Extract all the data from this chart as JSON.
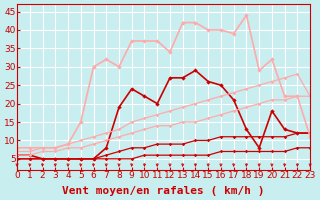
{
  "xlabel": "Vent moyen/en rafales ( km/h )",
  "xlim": [
    0,
    23
  ],
  "ylim": [
    2,
    47
  ],
  "yticks": [
    5,
    10,
    15,
    20,
    25,
    30,
    35,
    40,
    45
  ],
  "xticks": [
    0,
    1,
    2,
    3,
    4,
    5,
    6,
    7,
    8,
    9,
    10,
    11,
    12,
    13,
    14,
    15,
    16,
    17,
    18,
    19,
    20,
    21,
    22,
    23
  ],
  "bg_color": "#c8eef0",
  "grid_color": "#ffffff",
  "lines": [
    {
      "x": [
        0,
        1,
        2,
        3,
        4,
        5,
        6,
        7,
        8,
        9,
        10,
        11,
        12,
        13,
        14,
        15,
        16,
        17,
        18,
        19,
        20,
        21,
        22,
        23
      ],
      "y": [
        5,
        5,
        5,
        5,
        5,
        5,
        5,
        5,
        5,
        5,
        6,
        6,
        6,
        6,
        6,
        6,
        7,
        7,
        7,
        7,
        7,
        7,
        8,
        8
      ],
      "color": "#cc0000",
      "lw": 0.9,
      "marker": "D",
      "ms": 1.8,
      "alpha": 1.0
    },
    {
      "x": [
        0,
        1,
        2,
        3,
        4,
        5,
        6,
        7,
        8,
        9,
        10,
        11,
        12,
        13,
        14,
        15,
        16,
        17,
        18,
        19,
        20,
        21,
        22,
        23
      ],
      "y": [
        5,
        5,
        5,
        5,
        5,
        5,
        5,
        6,
        7,
        8,
        8,
        9,
        9,
        9,
        10,
        10,
        11,
        11,
        11,
        11,
        11,
        11,
        12,
        12
      ],
      "color": "#cc0000",
      "lw": 0.9,
      "marker": "D",
      "ms": 1.8,
      "alpha": 1.0
    },
    {
      "x": [
        0,
        1,
        2,
        3,
        4,
        5,
        6,
        7,
        8,
        9,
        10,
        11,
        12,
        13,
        14,
        15,
        16,
        17,
        18,
        19,
        20,
        21,
        22,
        23
      ],
      "y": [
        6,
        6,
        5,
        5,
        5,
        5,
        5,
        8,
        19,
        24,
        22,
        20,
        27,
        27,
        29,
        26,
        25,
        21,
        13,
        8,
        18,
        13,
        12,
        12
      ],
      "color": "#cc0000",
      "lw": 1.2,
      "marker": "D",
      "ms": 2.2,
      "alpha": 1.0
    },
    {
      "x": [
        0,
        1,
        2,
        3,
        4,
        5,
        6,
        7,
        8,
        9,
        10,
        11,
        12,
        13,
        14,
        15,
        16,
        17,
        18,
        19,
        20,
        21,
        22,
        23
      ],
      "y": [
        6,
        6,
        7,
        7,
        8,
        8,
        9,
        10,
        11,
        12,
        13,
        14,
        14,
        15,
        15,
        16,
        17,
        18,
        19,
        20,
        21,
        21,
        22,
        22
      ],
      "color": "#ffaaaa",
      "lw": 0.9,
      "marker": "D",
      "ms": 1.8,
      "alpha": 1.0
    },
    {
      "x": [
        0,
        1,
        2,
        3,
        4,
        5,
        6,
        7,
        8,
        9,
        10,
        11,
        12,
        13,
        14,
        15,
        16,
        17,
        18,
        19,
        20,
        21,
        22,
        23
      ],
      "y": [
        7,
        7,
        8,
        8,
        9,
        10,
        11,
        12,
        13,
        15,
        16,
        17,
        18,
        19,
        20,
        21,
        22,
        23,
        24,
        25,
        26,
        27,
        28,
        22
      ],
      "color": "#ffaaaa",
      "lw": 0.9,
      "marker": "D",
      "ms": 1.8,
      "alpha": 1.0
    },
    {
      "x": [
        0,
        1,
        2,
        3,
        4,
        5,
        6,
        7,
        8,
        9,
        10,
        11,
        12,
        13,
        14,
        15,
        16,
        17,
        18,
        19,
        20,
        21,
        22,
        23
      ],
      "y": [
        8,
        8,
        8,
        8,
        9,
        15,
        30,
        32,
        30,
        37,
        37,
        37,
        34,
        42,
        42,
        40,
        40,
        39,
        44,
        29,
        32,
        22,
        22,
        11
      ],
      "color": "#ffaaaa",
      "lw": 1.2,
      "marker": "D",
      "ms": 2.2,
      "alpha": 1.0
    }
  ],
  "arrow_color": "#cc0000",
  "xlabel_color": "#cc0000",
  "xlabel_fontsize": 8,
  "tick_color": "#cc0000",
  "tick_fontsize": 6.5
}
